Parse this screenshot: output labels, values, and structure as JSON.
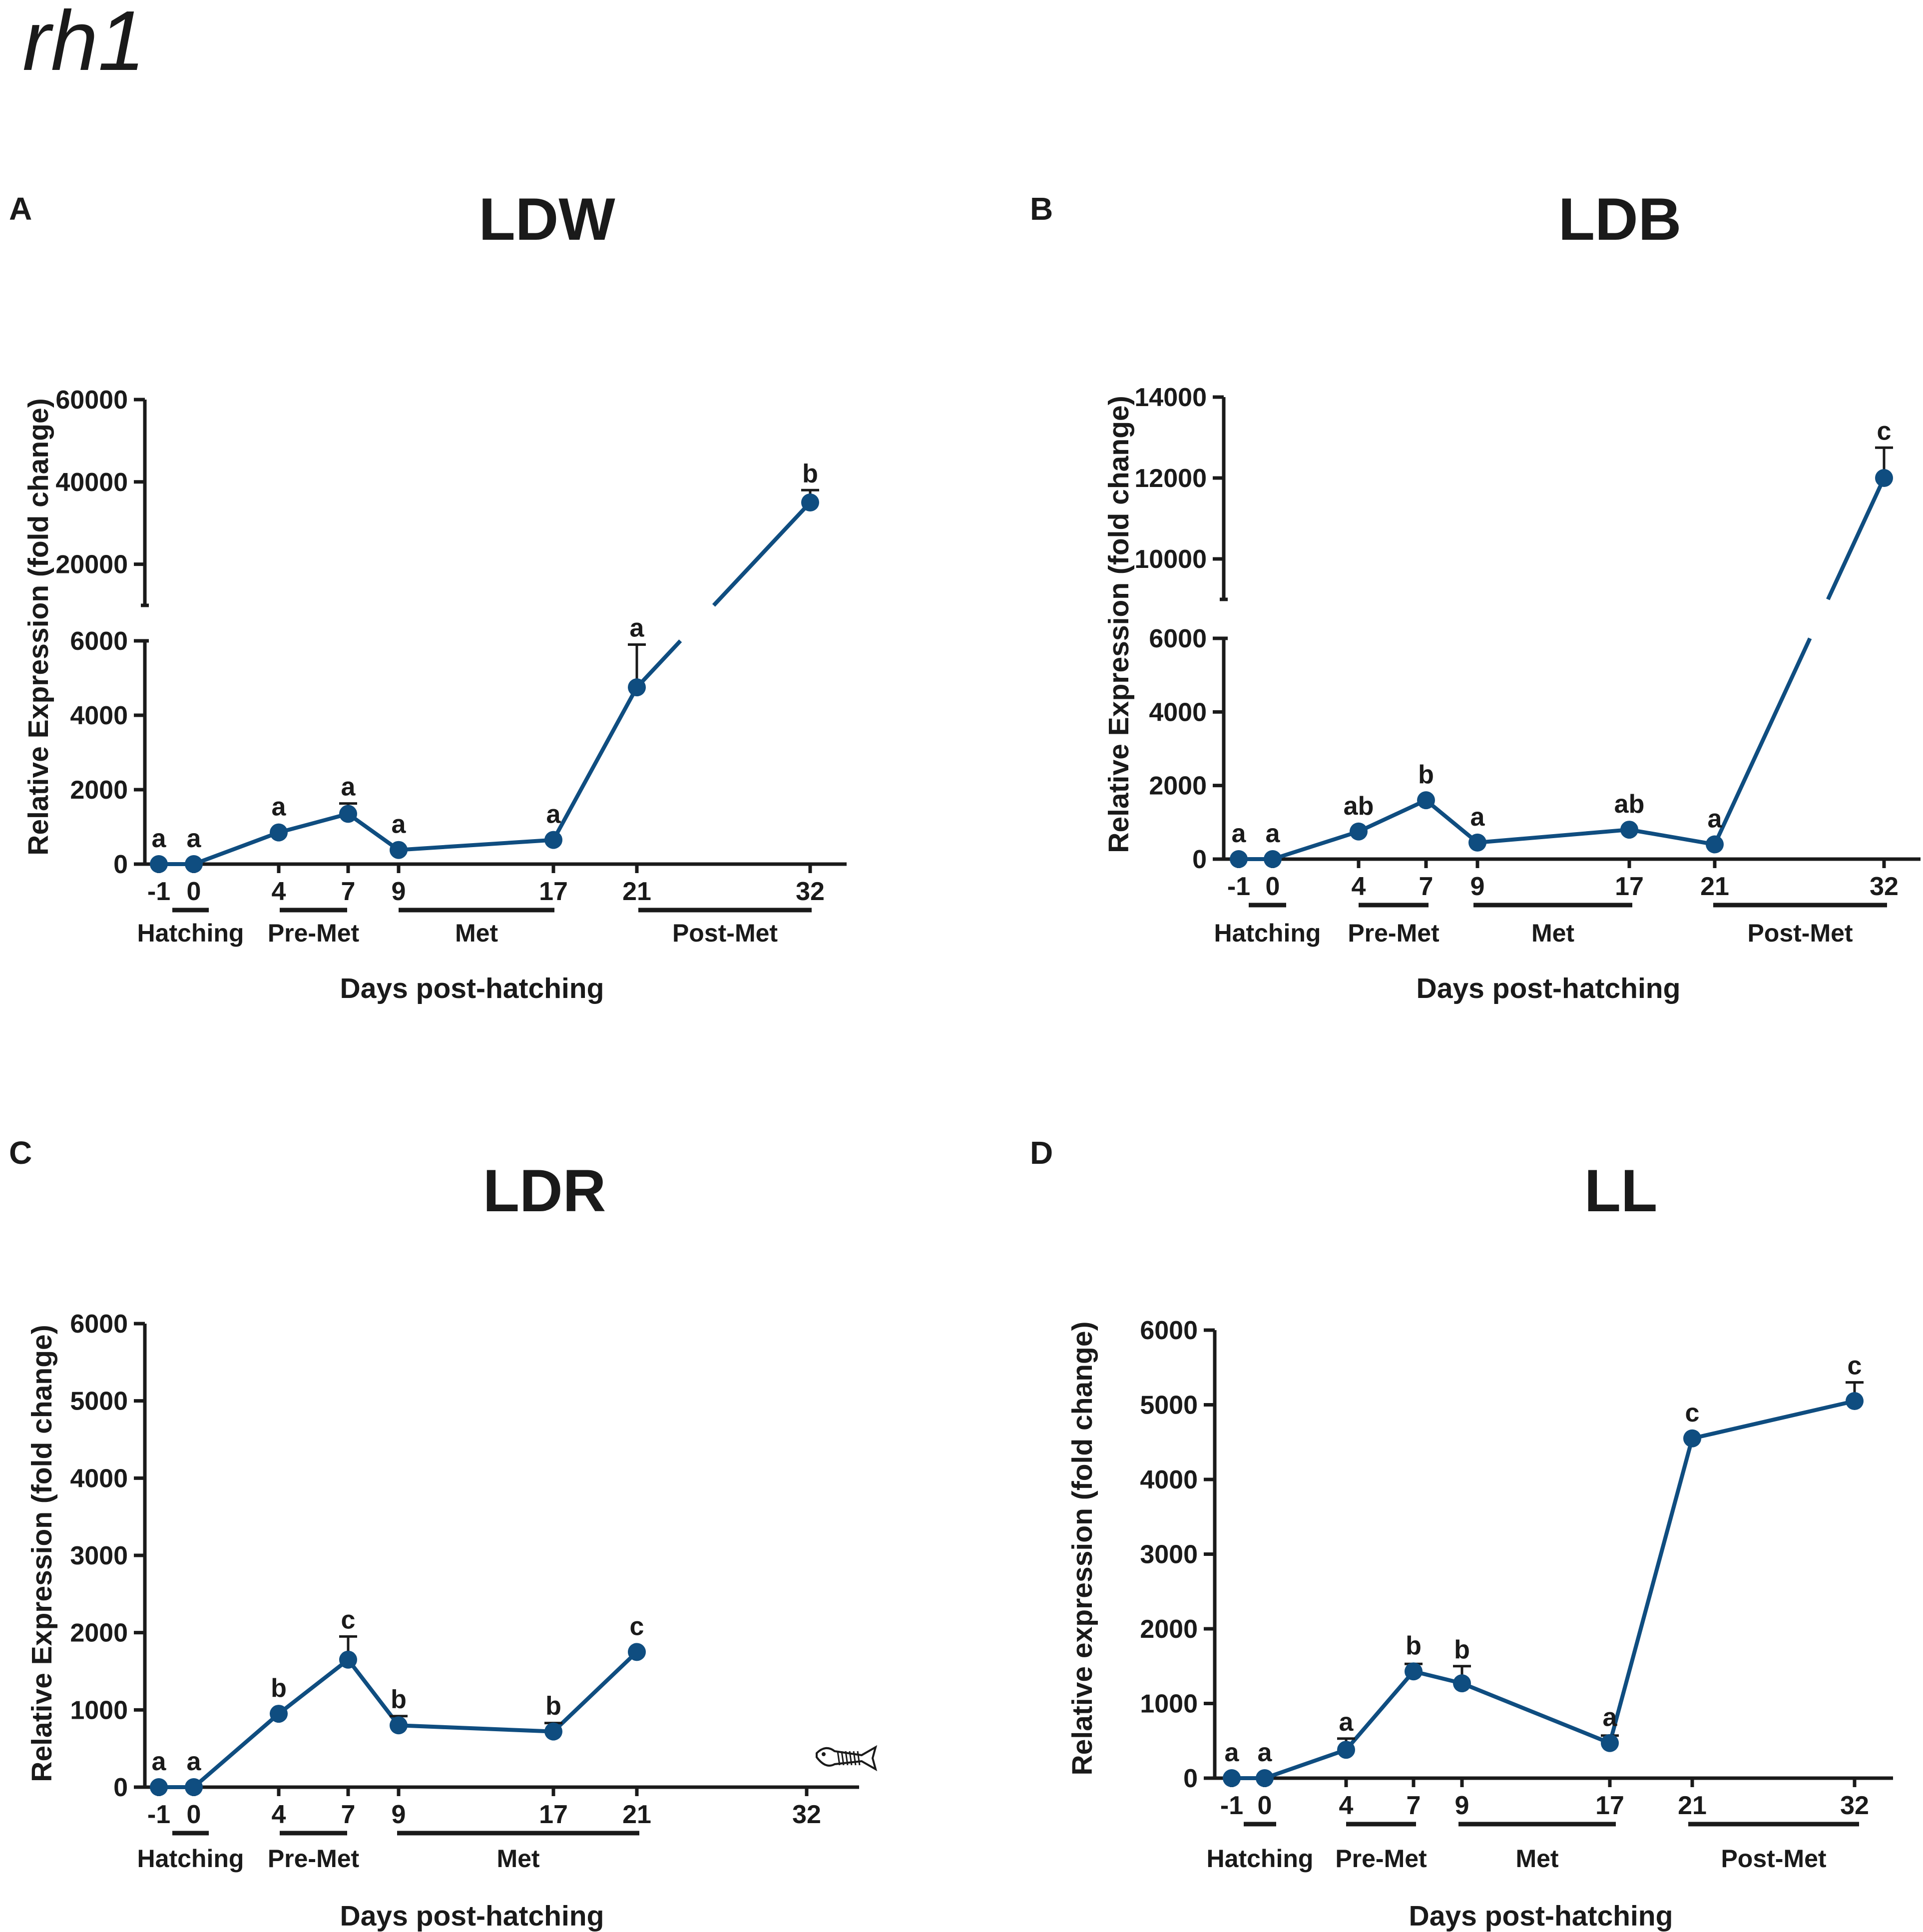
{
  "figure_title": "rh1",
  "chart_data": [
    {
      "panel": "A",
      "type": "line",
      "title": "LDW",
      "ylabel": "Relative Expression (fold change)",
      "xlabel": "Days post-hatching",
      "broken_axis": true,
      "lower_ylim": [
        0,
        6000
      ],
      "lower_yticks": [
        0,
        2000,
        4000,
        6000
      ],
      "upper_ylim": [
        10000,
        60000
      ],
      "upper_yticks": [
        20000,
        40000,
        60000
      ],
      "x_tick_labels": [
        "-1",
        "0",
        "4",
        "7",
        "9",
        "17",
        "21",
        "32"
      ],
      "stages": [
        {
          "label": "Hatching",
          "from": "-1",
          "to": "0"
        },
        {
          "label": "Pre-Met",
          "from": "4",
          "to": "7"
        },
        {
          "label": "Met",
          "from": "9",
          "to": "17"
        },
        {
          "label": "Post-Met",
          "from": "21",
          "to": "32"
        }
      ],
      "series": [
        {
          "name": "rh1",
          "x": [
            "-1",
            "0",
            "4",
            "7",
            "9",
            "17",
            "21",
            "32"
          ],
          "values": [
            0,
            0,
            850,
            1350,
            380,
            650,
            4750,
            35000
          ],
          "errors": [
            0,
            0,
            0,
            280,
            0,
            0,
            1150,
            3000
          ],
          "sig": [
            "a",
            "a",
            "a",
            "a",
            "a",
            "a",
            "a",
            "b"
          ]
        }
      ]
    },
    {
      "panel": "B",
      "type": "line",
      "title": "LDB",
      "ylabel": "Relative Expression (fold change)",
      "xlabel": "Days post-hatching",
      "broken_axis": true,
      "lower_ylim": [
        0,
        6000
      ],
      "lower_yticks": [
        0,
        2000,
        4000,
        6000
      ],
      "upper_ylim": [
        9000,
        14000
      ],
      "upper_yticks": [
        10000,
        12000,
        14000
      ],
      "x_tick_labels": [
        "-1",
        "0",
        "4",
        "7",
        "9",
        "17",
        "21",
        "32"
      ],
      "stages": [
        {
          "label": "Hatching",
          "from": "-1",
          "to": "0"
        },
        {
          "label": "Pre-Met",
          "from": "4",
          "to": "7"
        },
        {
          "label": "Met",
          "from": "9",
          "to": "17"
        },
        {
          "label": "Post-Met",
          "from": "21",
          "to": "32"
        }
      ],
      "series": [
        {
          "name": "rh1",
          "x": [
            "-1",
            "0",
            "4",
            "7",
            "9",
            "17",
            "21",
            "32"
          ],
          "values": [
            0,
            0,
            750,
            1600,
            450,
            800,
            400,
            12000
          ],
          "errors": [
            0,
            0,
            0,
            0,
            0,
            0,
            0,
            750
          ],
          "sig": [
            "a",
            "a",
            "ab",
            "b",
            "a",
            "ab",
            "a",
            "c"
          ]
        }
      ]
    },
    {
      "panel": "C",
      "type": "line",
      "title": "LDR",
      "ylabel": "Relative Expression (fold change)",
      "xlabel": "Days post-hatching",
      "broken_axis": false,
      "ylim": [
        0,
        6000
      ],
      "yticks": [
        0,
        1000,
        2000,
        3000,
        4000,
        5000,
        6000
      ],
      "x_tick_labels": [
        "-1",
        "0",
        "4",
        "7",
        "9",
        "17",
        "21",
        "32"
      ],
      "stages": [
        {
          "label": "Hatching",
          "from": "-1",
          "to": "0"
        },
        {
          "label": "Pre-Met",
          "from": "4",
          "to": "7"
        },
        {
          "label": "Met",
          "from": "9",
          "to": "21"
        }
      ],
      "series": [
        {
          "name": "rh1",
          "x": [
            "-1",
            "0",
            "4",
            "7",
            "9",
            "17",
            "21"
          ],
          "values": [
            0,
            0,
            950,
            1650,
            800,
            720,
            1750
          ],
          "errors": [
            0,
            0,
            0,
            300,
            120,
            110,
            0
          ],
          "sig": [
            "a",
            "a",
            "b",
            "c",
            "b",
            "b",
            "c"
          ]
        }
      ],
      "annotation": "dead-fish-icon"
    },
    {
      "panel": "D",
      "type": "line",
      "title": "LL",
      "ylabel": "Relative expression (fold change)",
      "xlabel": "Days post-hatching",
      "broken_axis": false,
      "ylim": [
        0,
        6000
      ],
      "yticks": [
        0,
        1000,
        2000,
        3000,
        4000,
        5000,
        6000
      ],
      "x_tick_labels": [
        "-1",
        "0",
        "4",
        "7",
        "9",
        "17",
        "21",
        "32"
      ],
      "stages": [
        {
          "label": "Hatching",
          "from": "-1",
          "to": "0"
        },
        {
          "label": "Pre-Met",
          "from": "4",
          "to": "7"
        },
        {
          "label": "Met",
          "from": "9",
          "to": "17"
        },
        {
          "label": "Post-Met",
          "from": "21",
          "to": "32"
        }
      ],
      "series": [
        {
          "name": "rh1",
          "x": [
            "-1",
            "0",
            "4",
            "7",
            "9",
            "17",
            "21",
            "32"
          ],
          "values": [
            0,
            0,
            380,
            1430,
            1270,
            470,
            4550,
            5050
          ],
          "errors": [
            0,
            0,
            150,
            100,
            230,
            100,
            0,
            250
          ],
          "sig": [
            "a",
            "a",
            "a",
            "b",
            "b",
            "a",
            "c",
            "c"
          ]
        }
      ]
    }
  ]
}
